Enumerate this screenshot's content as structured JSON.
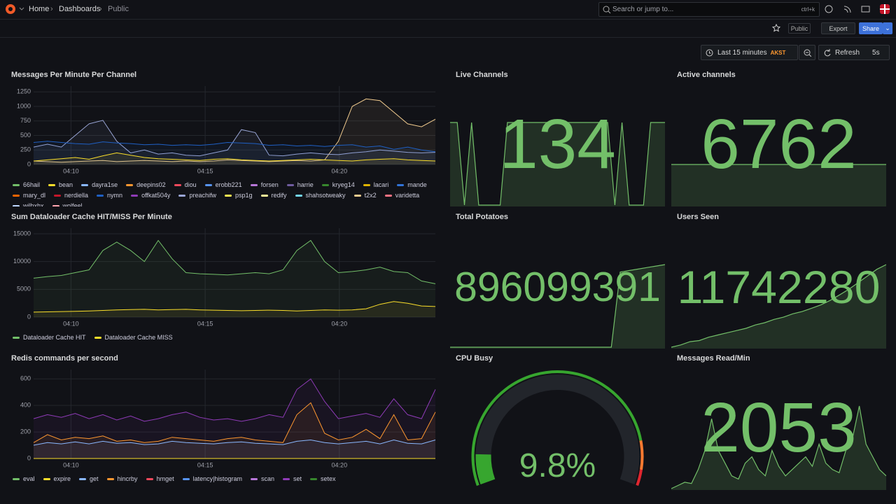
{
  "nav": {
    "breadcrumbs": [
      "Home",
      "Dashboards",
      "Public"
    ],
    "search_placeholder": "Search or jump to...",
    "shortcut": "ctrl+k"
  },
  "toolbar": {
    "public_badge": "Public",
    "export": "Export",
    "share": "Share"
  },
  "time_picker": {
    "range": "Last 15 minutes",
    "timezone": "AKST",
    "refresh": "Refresh",
    "interval": "5s"
  },
  "panels": [
    {
      "kind": "timeseries",
      "title": "Messages Per Minute Per Channel",
      "ylim": [
        0,
        1350
      ],
      "yticks": [
        0,
        250,
        500,
        750,
        1000,
        1250
      ],
      "xticks": [
        "04:10",
        "04:15",
        "04:20"
      ],
      "series": [
        {
          "name": "t2x2",
          "color": "#f2cc8f",
          "values": [
            60,
            50,
            40,
            50,
            60,
            70,
            50,
            60,
            70,
            60,
            50,
            60,
            50,
            60,
            80,
            70,
            60,
            50,
            60,
            70,
            60,
            80,
            400,
            1000,
            1130,
            1100,
            900,
            700,
            650,
            780
          ]
        },
        {
          "name": "preachifw",
          "color": "#9aa6d6",
          "values": [
            300,
            350,
            300,
            500,
            700,
            760,
            400,
            200,
            250,
            180,
            200,
            160,
            150,
            200,
            250,
            600,
            550,
            160,
            150,
            180,
            200,
            180,
            170,
            200,
            220,
            250,
            230,
            210,
            200,
            210
          ]
        },
        {
          "name": "nymn",
          "color": "#1f60c4",
          "values": [
            380,
            400,
            380,
            360,
            350,
            390,
            370,
            360,
            340,
            350,
            330,
            340,
            330,
            350,
            380,
            370,
            360,
            330,
            340,
            320,
            330,
            310,
            330,
            340,
            300,
            320,
            260,
            300,
            250,
            220
          ]
        },
        {
          "name": "bean",
          "color": "#fade2a",
          "values": [
            60,
            80,
            100,
            120,
            90,
            150,
            200,
            160,
            120,
            100,
            90,
            80,
            70,
            90,
            100,
            80,
            70,
            60,
            70,
            80,
            90,
            80,
            70,
            60,
            80,
            90,
            100,
            80,
            70,
            60
          ]
        }
      ],
      "legend": [
        {
          "name": "66hail",
          "color": "#73bf69"
        },
        {
          "name": "bean",
          "color": "#fade2a"
        },
        {
          "name": "dayra1se",
          "color": "#8ab8ff"
        },
        {
          "name": "deepins02",
          "color": "#ff9830"
        },
        {
          "name": "diou",
          "color": "#f2495c"
        },
        {
          "name": "erobb221",
          "color": "#5794f2"
        },
        {
          "name": "forsen",
          "color": "#b877d9"
        },
        {
          "name": "harrie",
          "color": "#705da0"
        },
        {
          "name": "kryeg14",
          "color": "#37872d"
        },
        {
          "name": "lacari",
          "color": "#e0b400"
        },
        {
          "name": "mande",
          "color": "#3274d9"
        },
        {
          "name": "mary_dl",
          "color": "#fa6400"
        },
        {
          "name": "nerdiella",
          "color": "#c4162a"
        },
        {
          "name": "nymn",
          "color": "#1f60c4"
        },
        {
          "name": "offkat504y",
          "color": "#8f3bb8"
        },
        {
          "name": "preachifw",
          "color": "#9aa6d6"
        },
        {
          "name": "psp1g",
          "color": "#ffee52"
        },
        {
          "name": "redify",
          "color": "#fff899"
        },
        {
          "name": "shahsotweaky",
          "color": "#73d5f2"
        },
        {
          "name": "t2x2",
          "color": "#f2cc8f"
        },
        {
          "name": "varidetta",
          "color": "#ff7383"
        },
        {
          "name": "wilhxhx",
          "color": "#c0d8ff"
        },
        {
          "name": "wolfeel",
          "color": "#ffa6b0"
        }
      ]
    },
    {
      "kind": "stat",
      "title": "Live Channels",
      "value": 134,
      "sparkline": [
        134,
        134,
        0,
        134,
        0,
        0,
        0,
        0,
        134,
        134,
        134,
        134,
        134,
        134,
        134,
        134,
        134,
        134,
        134,
        134,
        134,
        134,
        134,
        0,
        134,
        0,
        0,
        0,
        134,
        134,
        134
      ]
    },
    {
      "kind": "stat",
      "title": "Active channels",
      "value": 6762,
      "sparkline": [
        6762,
        6762,
        6762,
        6762,
        6762,
        6762,
        6762,
        6762,
        6762,
        6762
      ]
    },
    {
      "kind": "timeseries",
      "title": "Sum Dataloader Cache HIT/MISS Per Minute",
      "ylim": [
        0,
        16000
      ],
      "yticks": [
        0,
        5000,
        10000,
        15000
      ],
      "xticks": [
        "04:10",
        "04:15",
        "04:20"
      ],
      "series": [
        {
          "name": "Dataloader Cache HIT",
          "color": "#73bf69",
          "values": [
            7000,
            7300,
            7500,
            8000,
            8500,
            12000,
            13500,
            12000,
            10000,
            13800,
            10500,
            8000,
            7800,
            7700,
            7600,
            7800,
            8000,
            7800,
            8500,
            12000,
            13800,
            10000,
            8000,
            8200,
            8500,
            9000,
            8200,
            8000,
            6500,
            6000
          ]
        },
        {
          "name": "Dataloader Cache MISS",
          "color": "#fade2a",
          "values": [
            900,
            950,
            1000,
            1050,
            1100,
            1200,
            1300,
            1350,
            1400,
            1300,
            1350,
            1400,
            1300,
            1250,
            1200,
            1150,
            1200,
            1250,
            1200,
            1100,
            1200,
            1300,
            1250,
            1300,
            1500,
            2300,
            2800,
            2500,
            2000,
            1900
          ]
        }
      ],
      "legend": [
        {
          "name": "Dataloader Cache HIT",
          "color": "#73bf69"
        },
        {
          "name": "Dataloader Cache MISS",
          "color": "#fade2a"
        }
      ]
    },
    {
      "kind": "stat",
      "title": "Total Potatoes",
      "value": 896099391,
      "sparkline": [
        895000000,
        895000000,
        895000000,
        895000000,
        895000000,
        895000000,
        895000000,
        895000000,
        895000000,
        895000000,
        895000000,
        895000000,
        895000000,
        895000000,
        895000000,
        895000000,
        895000000,
        895000000,
        895000000,
        896000000,
        896020000,
        896040000,
        896060000,
        896080000,
        896099391
      ]
    },
    {
      "kind": "stat",
      "title": "Users Seen",
      "value": 11742280,
      "sparkline": [
        11000000,
        11020000,
        11050000,
        11060000,
        11090000,
        11110000,
        11130000,
        11150000,
        11170000,
        11200000,
        11220000,
        11250000,
        11270000,
        11300000,
        11320000,
        11350000,
        11380000,
        11420000,
        11470000,
        11520000,
        11580000,
        11640000,
        11700000,
        11742280
      ]
    },
    {
      "kind": "timeseries",
      "title": "Redis commands per second",
      "ylim": [
        0,
        670
      ],
      "yticks": [
        0,
        200,
        400,
        600
      ],
      "xticks": [
        "04:10",
        "04:15",
        "04:20"
      ],
      "series": [
        {
          "name": "set",
          "color": "#8f3bb8",
          "values": [
            300,
            330,
            310,
            340,
            300,
            330,
            290,
            320,
            280,
            300,
            330,
            350,
            310,
            290,
            300,
            280,
            300,
            330,
            310,
            520,
            600,
            430,
            300,
            320,
            340,
            310,
            450,
            330,
            300,
            520
          ]
        },
        {
          "name": "hincrby",
          "color": "#ff9830",
          "values": [
            120,
            180,
            140,
            160,
            150,
            170,
            130,
            140,
            120,
            130,
            160,
            150,
            140,
            130,
            150,
            160,
            140,
            130,
            120,
            330,
            420,
            190,
            140,
            160,
            220,
            150,
            330,
            140,
            150,
            350
          ]
        },
        {
          "name": "get",
          "color": "#8ab8ff",
          "values": [
            100,
            120,
            110,
            125,
            110,
            130,
            115,
            120,
            105,
            110,
            130,
            120,
            115,
            110,
            120,
            125,
            115,
            110,
            105,
            130,
            140,
            120,
            110,
            120,
            130,
            110,
            140,
            115,
            110,
            140
          ]
        },
        {
          "name": "expire",
          "color": "#fade2a",
          "values": [
            0,
            0,
            0,
            0,
            0,
            0,
            0,
            0,
            0,
            0,
            0,
            0,
            0,
            0,
            0,
            0,
            0,
            0,
            0,
            0,
            0,
            0,
            0,
            0,
            0,
            0,
            0,
            0,
            0,
            0
          ]
        }
      ],
      "legend": [
        {
          "name": "eval",
          "color": "#73bf69"
        },
        {
          "name": "expire",
          "color": "#fade2a"
        },
        {
          "name": "get",
          "color": "#8ab8ff"
        },
        {
          "name": "hincrby",
          "color": "#ff9830"
        },
        {
          "name": "hmget",
          "color": "#f2495c"
        },
        {
          "name": "latency|histogram",
          "color": "#5794f2"
        },
        {
          "name": "scan",
          "color": "#b877d9"
        },
        {
          "name": "set",
          "color": "#8f3bb8"
        },
        {
          "name": "setex",
          "color": "#37872d"
        }
      ]
    },
    {
      "kind": "gauge",
      "title": "CPU Busy",
      "value": 9.8,
      "value_label": "9.8%",
      "range": [
        0,
        100
      ]
    },
    {
      "kind": "stat",
      "title": "Messages Read/Min",
      "value": 2053,
      "sparkline": [
        300,
        350,
        400,
        380,
        600,
        900,
        1400,
        900,
        700,
        500,
        450,
        700,
        800,
        600,
        500,
        900,
        650,
        500,
        600,
        700,
        800,
        650,
        1000,
        700,
        600,
        550,
        900,
        1100,
        1600,
        1000,
        800,
        600,
        500
      ]
    }
  ]
}
